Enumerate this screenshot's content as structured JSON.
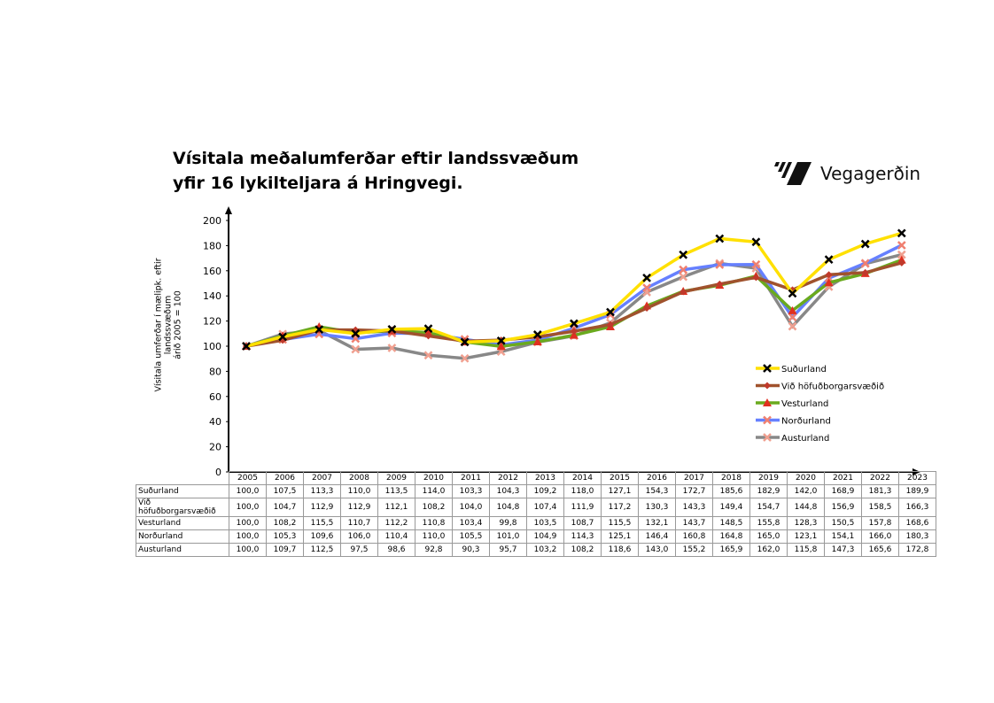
{
  "title_line1": "Vísitala meðalumferðar eftir landssvæðum",
  "title_line2": "yfir 16 lykilteljara á Hringvegi.",
  "logo_text": "Vegagerðin",
  "chart_data": {
    "type": "line",
    "ylabel_line1": "Vísitala umferðar í mælipk. eftir landssvæðum",
    "ylabel_line2": "árið 2005 = 100",
    "ylim": [
      0,
      200
    ],
    "yticks": [
      0,
      20,
      40,
      60,
      80,
      100,
      120,
      140,
      160,
      180,
      200
    ],
    "grid": false,
    "legend": "right",
    "categories": [
      "2005",
      "2006",
      "2007",
      "2008",
      "2009",
      "2010",
      "2011",
      "2012",
      "2013",
      "2014",
      "2015",
      "2016",
      "2017",
      "2018",
      "2019",
      "2020",
      "2021",
      "2022",
      "2023"
    ],
    "series": [
      {
        "name": "Suðurland",
        "color": "#ffe000",
        "marker": "x",
        "marker_color": "#000000",
        "values": [
          100.0,
          107.5,
          113.3,
          110.0,
          113.5,
          114.0,
          103.3,
          104.3,
          109.2,
          118.0,
          127.1,
          154.3,
          172.7,
          185.6,
          182.9,
          142.0,
          168.9,
          181.3,
          189.9
        ]
      },
      {
        "name": "Við höfuðborgarsvæðið",
        "color": "#a0522d",
        "marker": "diamond",
        "marker_color": "#c0392b",
        "values": [
          100.0,
          104.7,
          112.9,
          112.9,
          112.1,
          108.2,
          104.0,
          104.8,
          107.4,
          111.9,
          117.2,
          130.3,
          143.3,
          149.4,
          154.7,
          144.8,
          156.9,
          158.5,
          166.3
        ]
      },
      {
        "name": "Vesturland",
        "color": "#6aaa1e",
        "marker": "triangle",
        "marker_color": "#e03020",
        "values": [
          100.0,
          108.2,
          115.5,
          110.7,
          112.2,
          110.8,
          103.4,
          99.8,
          103.5,
          108.7,
          115.5,
          132.1,
          143.7,
          148.5,
          155.8,
          128.3,
          150.5,
          157.8,
          168.6
        ]
      },
      {
        "name": "Norðurland",
        "color": "#6680ff",
        "marker": "x",
        "marker_color": "#f08070",
        "values": [
          100.0,
          105.3,
          109.6,
          106.0,
          110.4,
          110.0,
          105.5,
          101.0,
          104.9,
          114.3,
          125.1,
          146.4,
          160.8,
          164.8,
          165.0,
          123.1,
          154.1,
          166.0,
          180.3
        ]
      },
      {
        "name": "Austurland",
        "color": "#888888",
        "marker": "x",
        "marker_color": "#f0a090",
        "values": [
          100.0,
          109.7,
          112.5,
          97.5,
          98.6,
          92.8,
          90.3,
          95.7,
          103.2,
          108.2,
          118.6,
          143.0,
          155.2,
          165.9,
          162.0,
          115.8,
          147.3,
          165.6,
          172.8
        ]
      }
    ]
  }
}
